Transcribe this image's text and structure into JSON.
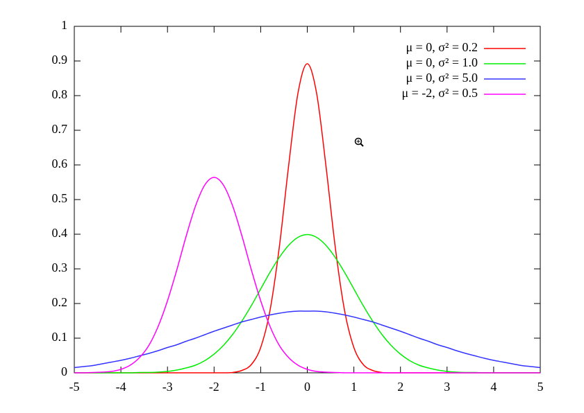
{
  "chart_data": {
    "type": "line",
    "x": [
      -5,
      -4.8,
      -4.6,
      -4.4,
      -4.2,
      -4,
      -3.8,
      -3.6,
      -3.4,
      -3.2,
      -3,
      -2.8,
      -2.6,
      -2.4,
      -2.2,
      -2,
      -1.8,
      -1.6,
      -1.4,
      -1.2,
      -1,
      -0.8,
      -0.6,
      -0.4,
      -0.2,
      0,
      0.2,
      0.4,
      0.6,
      0.8,
      1,
      1.2,
      1.4,
      1.6,
      1.8,
      2,
      2.2,
      2.4,
      2.6,
      2.8,
      3,
      3.2,
      3.4,
      3.6,
      3.8,
      4,
      4.2,
      4.4,
      4.6,
      4.8,
      5
    ],
    "series": [
      {
        "name": "μ =  0, σ² = 0.2",
        "color": "#ff0000",
        "values": [
          0,
          0,
          0,
          0,
          0,
          0,
          0,
          0,
          0,
          0,
          0,
          0,
          0,
          0,
          0,
          0,
          0,
          0.001,
          0.007,
          0.024,
          0.073,
          0.18,
          0.363,
          0.598,
          0.807,
          0.892,
          0.807,
          0.598,
          0.363,
          0.18,
          0.073,
          0.024,
          0.007,
          0.001,
          0,
          0,
          0,
          0,
          0,
          0,
          0,
          0,
          0,
          0,
          0,
          0,
          0,
          0,
          0,
          0,
          0
        ]
      },
      {
        "name": "μ =  0, σ² = 1.0",
        "color": "#00ee00",
        "values": [
          0,
          0,
          0,
          0,
          0,
          0,
          0,
          0.001,
          0.001,
          0.002,
          0.004,
          0.008,
          0.014,
          0.022,
          0.035,
          0.054,
          0.079,
          0.111,
          0.15,
          0.194,
          0.242,
          0.29,
          0.333,
          0.368,
          0.391,
          0.399,
          0.391,
          0.368,
          0.333,
          0.29,
          0.242,
          0.194,
          0.15,
          0.111,
          0.079,
          0.054,
          0.035,
          0.022,
          0.014,
          0.008,
          0.004,
          0.002,
          0.001,
          0.001,
          0,
          0,
          0,
          0,
          0,
          0,
          0
        ]
      },
      {
        "name": "μ =  0, σ² = 5.0",
        "color": "#3333ff",
        "values": [
          0.015,
          0.018,
          0.021,
          0.026,
          0.031,
          0.036,
          0.042,
          0.049,
          0.056,
          0.064,
          0.073,
          0.081,
          0.091,
          0.1,
          0.11,
          0.12,
          0.129,
          0.138,
          0.147,
          0.154,
          0.161,
          0.167,
          0.172,
          0.176,
          0.178,
          0.178,
          0.178,
          0.176,
          0.172,
          0.167,
          0.161,
          0.154,
          0.147,
          0.138,
          0.129,
          0.12,
          0.11,
          0.1,
          0.091,
          0.081,
          0.073,
          0.064,
          0.056,
          0.049,
          0.042,
          0.036,
          0.031,
          0.026,
          0.021,
          0.018,
          0.015
        ]
      },
      {
        "name": "μ = -2, σ² = 0.5",
        "color": "#ff00ff",
        "values": [
          0,
          0,
          0.001,
          0.002,
          0.004,
          0.01,
          0.022,
          0.044,
          0.079,
          0.134,
          0.208,
          0.297,
          0.394,
          0.481,
          0.542,
          0.564,
          0.542,
          0.481,
          0.394,
          0.297,
          0.208,
          0.134,
          0.079,
          0.044,
          0.022,
          0.01,
          0.004,
          0.002,
          0.001,
          0,
          0,
          0,
          0,
          0,
          0,
          0,
          0,
          0,
          0,
          0,
          0,
          0,
          0,
          0,
          0,
          0,
          0,
          0,
          0,
          0,
          0
        ]
      }
    ],
    "xlim": [
      -5,
      5
    ],
    "ylim": [
      0,
      1
    ],
    "xticks": [
      -5,
      -4,
      -3,
      -2,
      -1,
      0,
      1,
      2,
      3,
      4,
      5
    ],
    "yticks": [
      0,
      0.1,
      0.2,
      0.3,
      0.4,
      0.5,
      0.6,
      0.7,
      0.8,
      0.9,
      1
    ],
    "legend": "top-right"
  }
}
